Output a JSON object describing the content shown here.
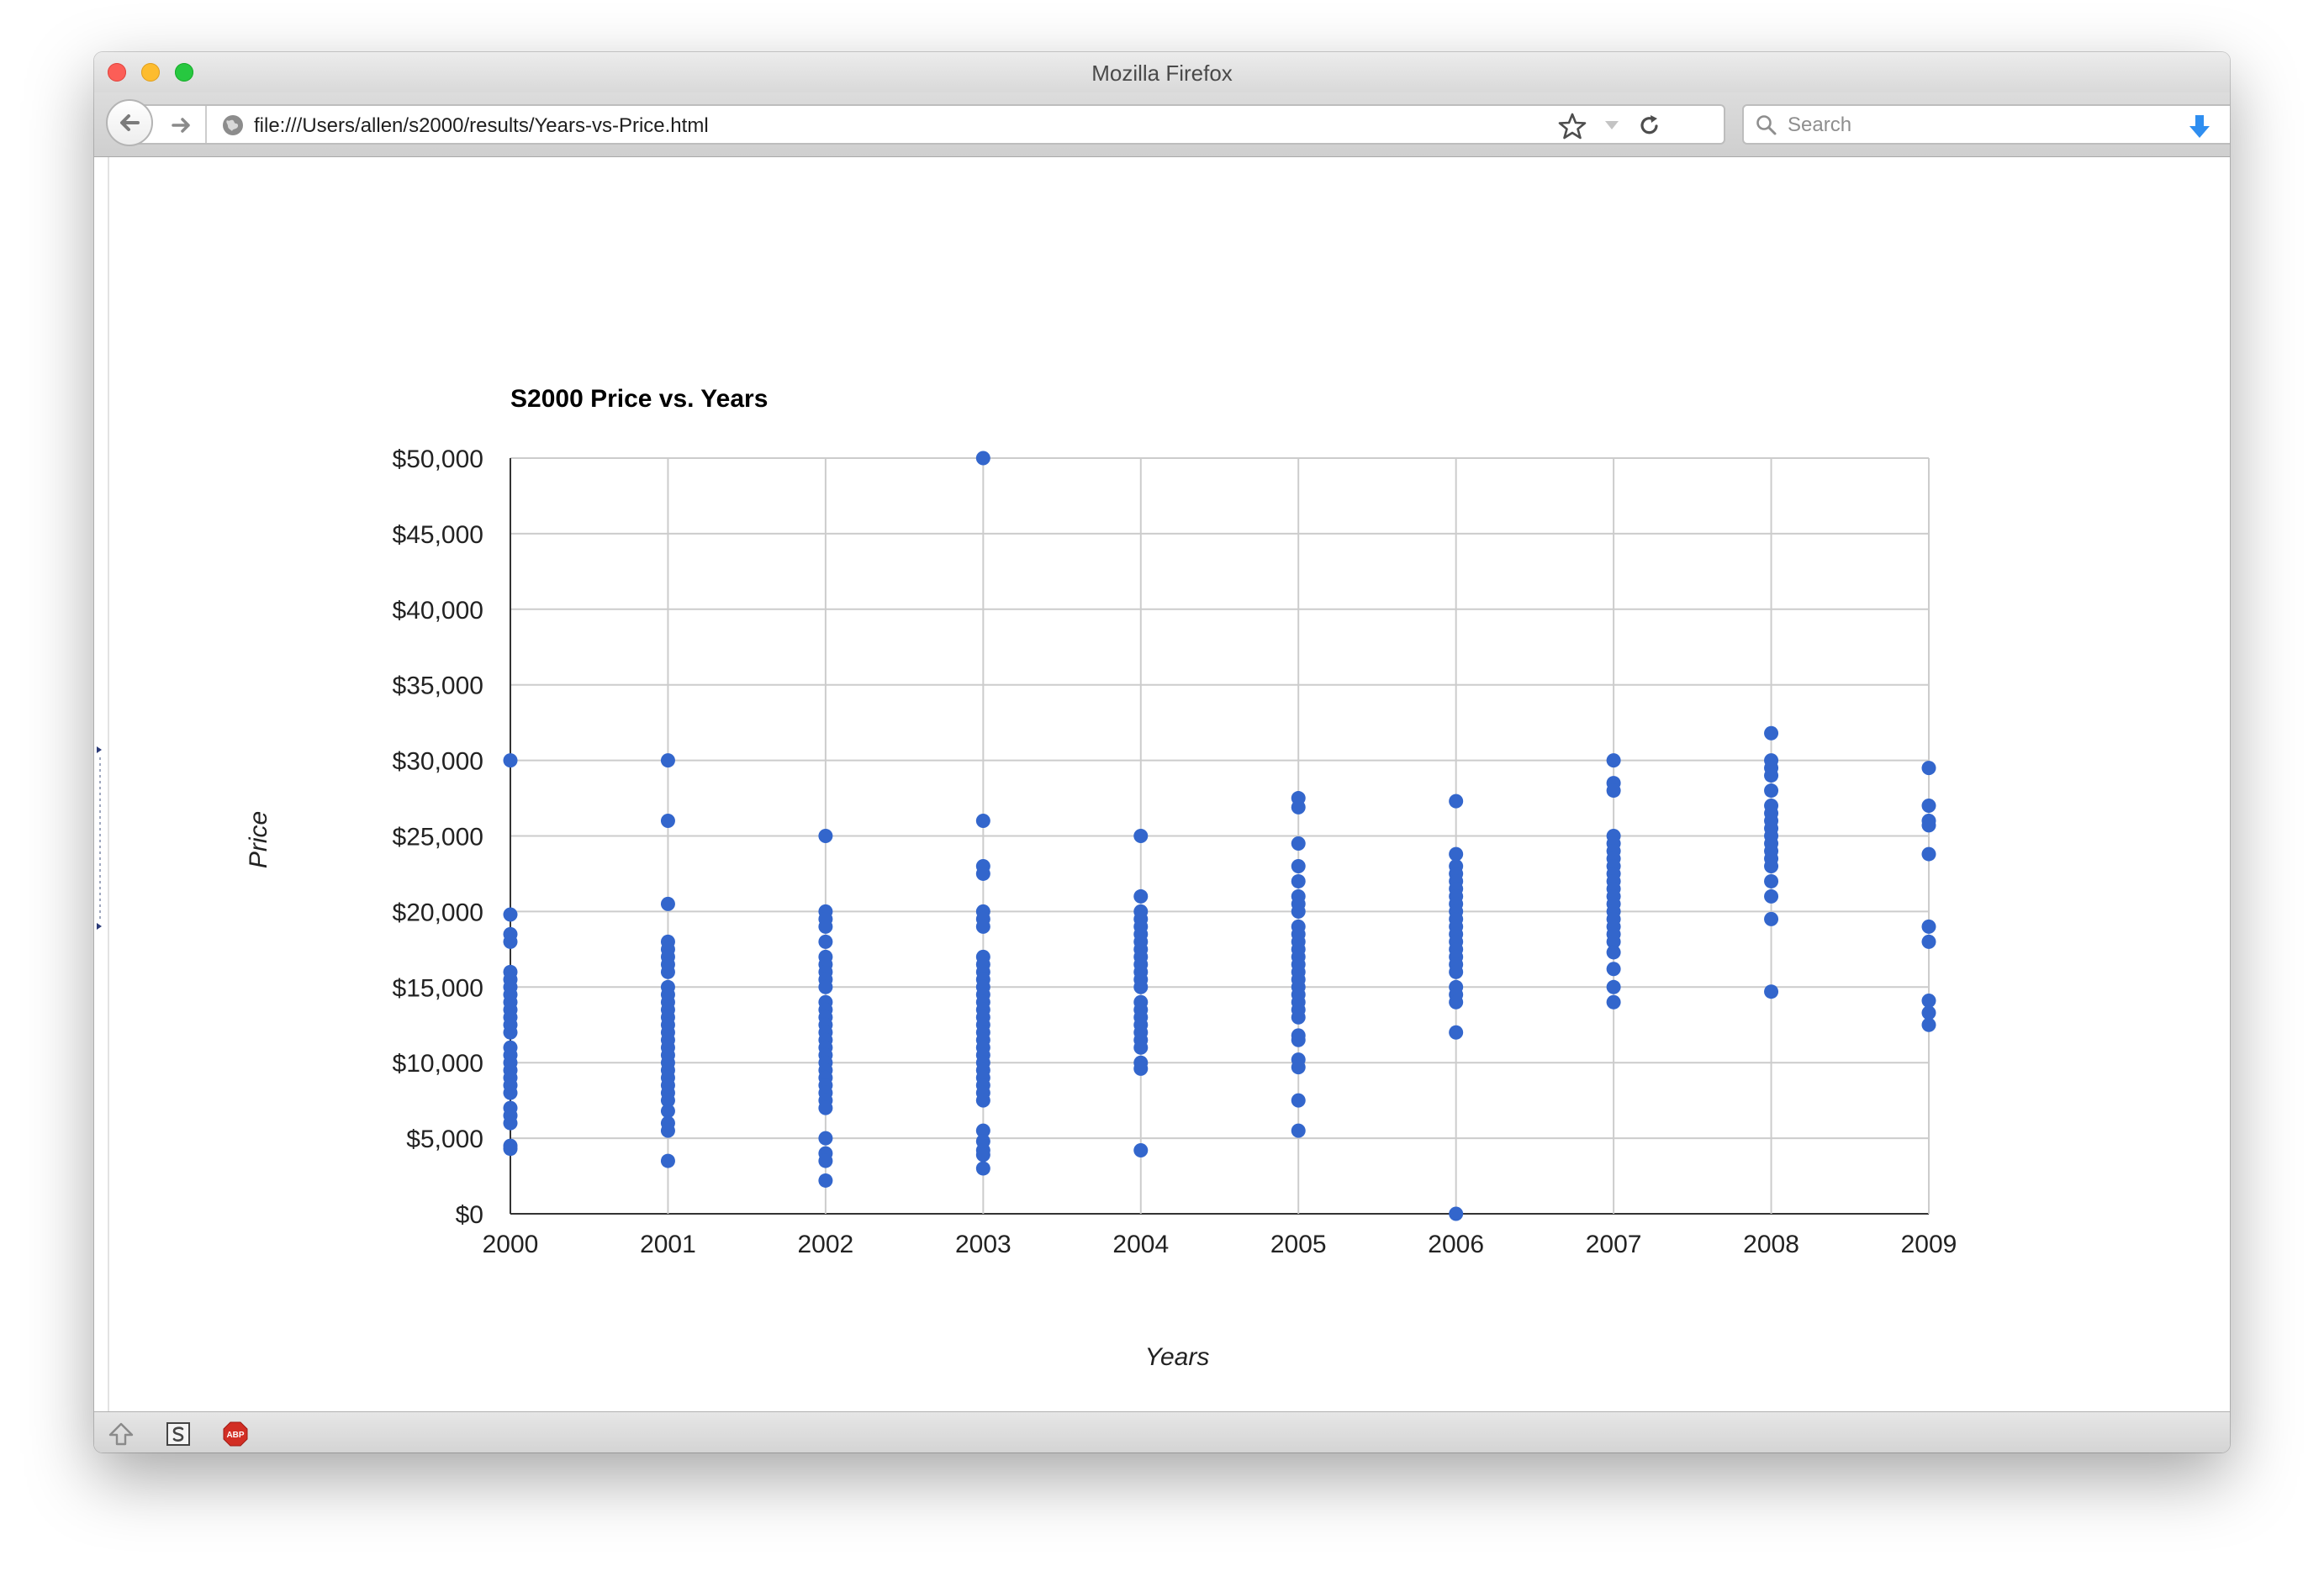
{
  "window": {
    "title": "Mozilla Firefox"
  },
  "toolbar": {
    "url": "file:///Users/allen/s2000/results/Years-vs-Price.html",
    "search_placeholder": "Search"
  },
  "icons": {
    "back": "back-arrow-icon",
    "forward": "forward-arrow-icon",
    "site": "globe-icon",
    "bookmark": "star-icon",
    "reload": "reload-icon",
    "search": "search-icon",
    "download": "download-arrow-icon",
    "addons": [
      "arrow-up-icon",
      "s-square-icon",
      "adblock-plus-icon"
    ]
  },
  "colors": {
    "series": "#3366cc",
    "accent": "#2f8ef0"
  },
  "addons": {
    "adblock_label": "ABP"
  },
  "chart_data": {
    "type": "scatter",
    "title": "S2000 Price vs. Years",
    "xlabel": "Years",
    "ylabel": "Price",
    "x_ticks": [
      "2000",
      "2001",
      "2002",
      "2003",
      "2004",
      "2005",
      "2006",
      "2007",
      "2008",
      "2009"
    ],
    "y_ticks": [
      "$0",
      "$5,000",
      "$10,000",
      "$15,000",
      "$20,000",
      "$25,000",
      "$30,000",
      "$35,000",
      "$40,000",
      "$45,000",
      "$50,000"
    ],
    "xlim": [
      2000,
      2009
    ],
    "ylim": [
      0,
      50000
    ],
    "grid": true,
    "legend": "none",
    "points": [
      [
        2000,
        30000
      ],
      [
        2000,
        19800
      ],
      [
        2000,
        18500
      ],
      [
        2000,
        18000
      ],
      [
        2000,
        16000
      ],
      [
        2000,
        15500
      ],
      [
        2000,
        15000
      ],
      [
        2000,
        14500
      ],
      [
        2000,
        14000
      ],
      [
        2000,
        13500
      ],
      [
        2000,
        13000
      ],
      [
        2000,
        12500
      ],
      [
        2000,
        12000
      ],
      [
        2000,
        11000
      ],
      [
        2000,
        10500
      ],
      [
        2000,
        10000
      ],
      [
        2000,
        9500
      ],
      [
        2000,
        9000
      ],
      [
        2000,
        8500
      ],
      [
        2000,
        8000
      ],
      [
        2000,
        7000
      ],
      [
        2000,
        6500
      ],
      [
        2000,
        6000
      ],
      [
        2000,
        4500
      ],
      [
        2000,
        4300
      ],
      [
        2001,
        30000
      ],
      [
        2001,
        26000
      ],
      [
        2001,
        20500
      ],
      [
        2001,
        18000
      ],
      [
        2001,
        17500
      ],
      [
        2001,
        17000
      ],
      [
        2001,
        16500
      ],
      [
        2001,
        16000
      ],
      [
        2001,
        15000
      ],
      [
        2001,
        14500
      ],
      [
        2001,
        14000
      ],
      [
        2001,
        13500
      ],
      [
        2001,
        13000
      ],
      [
        2001,
        12500
      ],
      [
        2001,
        12000
      ],
      [
        2001,
        11500
      ],
      [
        2001,
        11000
      ],
      [
        2001,
        10500
      ],
      [
        2001,
        10000
      ],
      [
        2001,
        9500
      ],
      [
        2001,
        9000
      ],
      [
        2001,
        8500
      ],
      [
        2001,
        8000
      ],
      [
        2001,
        7500
      ],
      [
        2001,
        6800
      ],
      [
        2001,
        6000
      ],
      [
        2001,
        5500
      ],
      [
        2001,
        3500
      ],
      [
        2002,
        25000
      ],
      [
        2002,
        20000
      ],
      [
        2002,
        19500
      ],
      [
        2002,
        19000
      ],
      [
        2002,
        18000
      ],
      [
        2002,
        17000
      ],
      [
        2002,
        16500
      ],
      [
        2002,
        16000
      ],
      [
        2002,
        15500
      ],
      [
        2002,
        15000
      ],
      [
        2002,
        14000
      ],
      [
        2002,
        13500
      ],
      [
        2002,
        13000
      ],
      [
        2002,
        12500
      ],
      [
        2002,
        12000
      ],
      [
        2002,
        11500
      ],
      [
        2002,
        11000
      ],
      [
        2002,
        10500
      ],
      [
        2002,
        10000
      ],
      [
        2002,
        9500
      ],
      [
        2002,
        9000
      ],
      [
        2002,
        8500
      ],
      [
        2002,
        8000
      ],
      [
        2002,
        7500
      ],
      [
        2002,
        7000
      ],
      [
        2002,
        5000
      ],
      [
        2002,
        4000
      ],
      [
        2002,
        3500
      ],
      [
        2002,
        2200
      ],
      [
        2003,
        50000
      ],
      [
        2003,
        26000
      ],
      [
        2003,
        23000
      ],
      [
        2003,
        22500
      ],
      [
        2003,
        20000
      ],
      [
        2003,
        19500
      ],
      [
        2003,
        19000
      ],
      [
        2003,
        17000
      ],
      [
        2003,
        16500
      ],
      [
        2003,
        16000
      ],
      [
        2003,
        15500
      ],
      [
        2003,
        15000
      ],
      [
        2003,
        14500
      ],
      [
        2003,
        14000
      ],
      [
        2003,
        13500
      ],
      [
        2003,
        13000
      ],
      [
        2003,
        12500
      ],
      [
        2003,
        12000
      ],
      [
        2003,
        11500
      ],
      [
        2003,
        11000
      ],
      [
        2003,
        10500
      ],
      [
        2003,
        10000
      ],
      [
        2003,
        9500
      ],
      [
        2003,
        9000
      ],
      [
        2003,
        8500
      ],
      [
        2003,
        8000
      ],
      [
        2003,
        7500
      ],
      [
        2003,
        5500
      ],
      [
        2003,
        4800
      ],
      [
        2003,
        4200
      ],
      [
        2003,
        3900
      ],
      [
        2003,
        3000
      ],
      [
        2004,
        25000
      ],
      [
        2004,
        21000
      ],
      [
        2004,
        20000
      ],
      [
        2004,
        19500
      ],
      [
        2004,
        19000
      ],
      [
        2004,
        18500
      ],
      [
        2004,
        18000
      ],
      [
        2004,
        17500
      ],
      [
        2004,
        17000
      ],
      [
        2004,
        16500
      ],
      [
        2004,
        16000
      ],
      [
        2004,
        15500
      ],
      [
        2004,
        15000
      ],
      [
        2004,
        14000
      ],
      [
        2004,
        13500
      ],
      [
        2004,
        13000
      ],
      [
        2004,
        12500
      ],
      [
        2004,
        12000
      ],
      [
        2004,
        11500
      ],
      [
        2004,
        11000
      ],
      [
        2004,
        10000
      ],
      [
        2004,
        9600
      ],
      [
        2004,
        4200
      ],
      [
        2005,
        27500
      ],
      [
        2005,
        26900
      ],
      [
        2005,
        24500
      ],
      [
        2005,
        23000
      ],
      [
        2005,
        22000
      ],
      [
        2005,
        21000
      ],
      [
        2005,
        20500
      ],
      [
        2005,
        20000
      ],
      [
        2005,
        19000
      ],
      [
        2005,
        18500
      ],
      [
        2005,
        18000
      ],
      [
        2005,
        17500
      ],
      [
        2005,
        17000
      ],
      [
        2005,
        16500
      ],
      [
        2005,
        16000
      ],
      [
        2005,
        15500
      ],
      [
        2005,
        15000
      ],
      [
        2005,
        14500
      ],
      [
        2005,
        14000
      ],
      [
        2005,
        13500
      ],
      [
        2005,
        13000
      ],
      [
        2005,
        11800
      ],
      [
        2005,
        11500
      ],
      [
        2005,
        10200
      ],
      [
        2005,
        9700
      ],
      [
        2005,
        7500
      ],
      [
        2005,
        5500
      ],
      [
        2006,
        27300
      ],
      [
        2006,
        23800
      ],
      [
        2006,
        23000
      ],
      [
        2006,
        22500
      ],
      [
        2006,
        22000
      ],
      [
        2006,
        21500
      ],
      [
        2006,
        21000
      ],
      [
        2006,
        20500
      ],
      [
        2006,
        20000
      ],
      [
        2006,
        19500
      ],
      [
        2006,
        19000
      ],
      [
        2006,
        18500
      ],
      [
        2006,
        18000
      ],
      [
        2006,
        17500
      ],
      [
        2006,
        17000
      ],
      [
        2006,
        16500
      ],
      [
        2006,
        16000
      ],
      [
        2006,
        15000
      ],
      [
        2006,
        14500
      ],
      [
        2006,
        14000
      ],
      [
        2006,
        12000
      ],
      [
        2006,
        0
      ],
      [
        2007,
        30000
      ],
      [
        2007,
        28500
      ],
      [
        2007,
        28000
      ],
      [
        2007,
        25000
      ],
      [
        2007,
        24500
      ],
      [
        2007,
        24000
      ],
      [
        2007,
        23500
      ],
      [
        2007,
        23000
      ],
      [
        2007,
        22500
      ],
      [
        2007,
        22000
      ],
      [
        2007,
        21500
      ],
      [
        2007,
        21000
      ],
      [
        2007,
        20500
      ],
      [
        2007,
        20000
      ],
      [
        2007,
        19500
      ],
      [
        2007,
        19000
      ],
      [
        2007,
        18500
      ],
      [
        2007,
        18000
      ],
      [
        2007,
        17300
      ],
      [
        2007,
        16200
      ],
      [
        2007,
        15000
      ],
      [
        2007,
        14000
      ],
      [
        2008,
        31800
      ],
      [
        2008,
        30000
      ],
      [
        2008,
        29500
      ],
      [
        2008,
        29000
      ],
      [
        2008,
        28000
      ],
      [
        2008,
        27000
      ],
      [
        2008,
        26500
      ],
      [
        2008,
        26000
      ],
      [
        2008,
        25500
      ],
      [
        2008,
        25000
      ],
      [
        2008,
        24500
      ],
      [
        2008,
        24000
      ],
      [
        2008,
        23500
      ],
      [
        2008,
        23000
      ],
      [
        2008,
        22000
      ],
      [
        2008,
        21000
      ],
      [
        2008,
        19500
      ],
      [
        2008,
        14700
      ],
      [
        2009,
        29500
      ],
      [
        2009,
        27000
      ],
      [
        2009,
        26000
      ],
      [
        2009,
        25700
      ],
      [
        2009,
        23800
      ],
      [
        2009,
        19000
      ],
      [
        2009,
        18000
      ],
      [
        2009,
        14100
      ],
      [
        2009,
        13300
      ],
      [
        2009,
        12500
      ]
    ]
  }
}
